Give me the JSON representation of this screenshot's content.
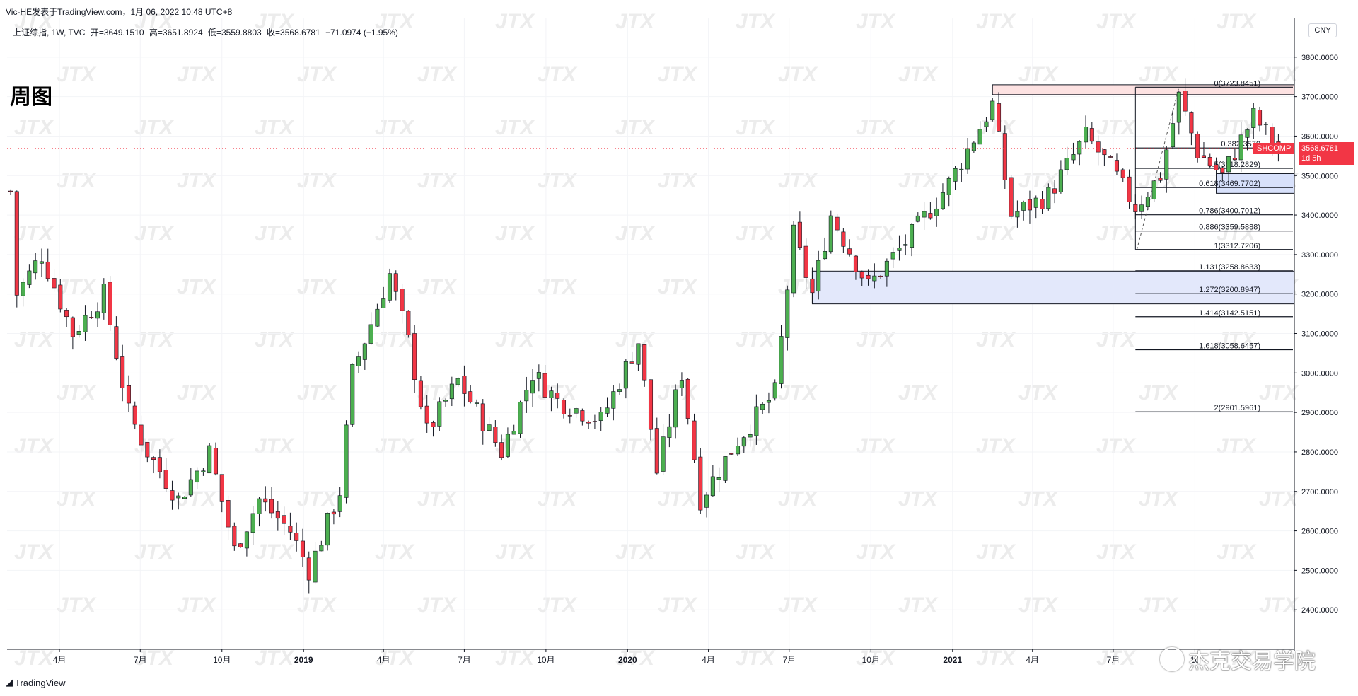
{
  "header": {
    "published": "Vic-HE发表于TradingView.com，1月 06, 2022 10:48 UTC+8"
  },
  "legend": {
    "symbol": "上证综指, 1W, TVC",
    "open": "开=3649.1510",
    "high": "高=3651.8924",
    "low": "低=3559.8803",
    "close": "收=3568.6781",
    "change": "−71.0974 (−1.95%)"
  },
  "page_title": "周图",
  "currency": "CNY",
  "price_tag": {
    "symbol": "SHCOMP",
    "price": "3568.6781",
    "countdown": "1d 5h"
  },
  "footer": {
    "brand": "TradingView"
  },
  "watermark": {
    "text": "杰克交易学院",
    "tile": "JTX"
  },
  "colors": {
    "up": "#4caf50",
    "down": "#f23645",
    "grid": "#f0f3fa",
    "axis": "#131722"
  },
  "chart_data": {
    "type": "candlestick",
    "y_axis": {
      "ylim": [
        2300,
        3900
      ],
      "ticks": [
        3800,
        3700,
        3600,
        3500,
        3400,
        3300,
        3200,
        3100,
        3000,
        2900,
        2800,
        2700,
        2600,
        2500,
        2400
      ],
      "tick_labels": [
        "3800.0000",
        "3700.0000",
        "3600.0000",
        "3500.0000",
        "3400.0000",
        "3300.0000",
        "3200.0000",
        "3100.0000",
        "3000.0000",
        "2900.0000",
        "2800.0000",
        "2700.0000",
        "2600.0000",
        "2500.0000",
        "2400.0000"
      ],
      "position": "right"
    },
    "x_axis": {
      "xlim": [
        "2018-02-01",
        "2022-01-21"
      ],
      "ticks": [
        {
          "date": "2018-04-01",
          "label": "4月"
        },
        {
          "date": "2018-07-01",
          "label": "7月"
        },
        {
          "date": "2018-10-01",
          "label": "10月"
        },
        {
          "date": "2019-01-01",
          "label": "2019"
        },
        {
          "date": "2019-04-01",
          "label": "4月"
        },
        {
          "date": "2019-07-01",
          "label": "7月"
        },
        {
          "date": "2019-10-01",
          "label": "10月"
        },
        {
          "date": "2020-01-01",
          "label": "2020"
        },
        {
          "date": "2020-04-01",
          "label": "4月"
        },
        {
          "date": "2020-07-01",
          "label": "7月"
        },
        {
          "date": "2020-10-01",
          "label": "10月"
        },
        {
          "date": "2021-01-01",
          "label": "2021"
        },
        {
          "date": "2021-04-01",
          "label": "4月"
        },
        {
          "date": "2021-07-01",
          "label": "7月"
        },
        {
          "date": "2021-10-01",
          "label": "10"
        }
      ]
    },
    "anchors": [
      {
        "date": "2018-02-05",
        "close": 3460
      },
      {
        "date": "2018-02-12",
        "close": 3200
      },
      {
        "date": "2018-03-12",
        "close": 3300
      },
      {
        "date": "2018-04-16",
        "close": 3100
      },
      {
        "date": "2018-05-21",
        "close": 3200
      },
      {
        "date": "2018-06-18",
        "close": 2900
      },
      {
        "date": "2018-07-09",
        "close": 2800
      },
      {
        "date": "2018-08-13",
        "close": 2680
      },
      {
        "date": "2018-09-17",
        "close": 2800
      },
      {
        "date": "2018-10-15",
        "close": 2550
      },
      {
        "date": "2018-11-12",
        "close": 2680
      },
      {
        "date": "2018-12-17",
        "close": 2600
      },
      {
        "date": "2019-01-07",
        "close": 2500
      },
      {
        "date": "2019-02-11",
        "close": 2700
      },
      {
        "date": "2019-02-25",
        "close": 3000
      },
      {
        "date": "2019-04-08",
        "close": 3250
      },
      {
        "date": "2019-04-29",
        "close": 3080
      },
      {
        "date": "2019-05-20",
        "close": 2850
      },
      {
        "date": "2019-06-24",
        "close": 2980
      },
      {
        "date": "2019-08-12",
        "close": 2800
      },
      {
        "date": "2019-09-16",
        "close": 3000
      },
      {
        "date": "2019-10-14",
        "close": 2930
      },
      {
        "date": "2019-12-02",
        "close": 2880
      },
      {
        "date": "2020-01-13",
        "close": 3080
      },
      {
        "date": "2020-02-03",
        "close": 2750
      },
      {
        "date": "2020-03-02",
        "close": 3000
      },
      {
        "date": "2020-03-23",
        "close": 2680
      },
      {
        "date": "2020-05-04",
        "close": 2830
      },
      {
        "date": "2020-06-15",
        "close": 2950
      },
      {
        "date": "2020-07-06",
        "close": 3350
      },
      {
        "date": "2020-07-27",
        "close": 3200
      },
      {
        "date": "2020-08-17",
        "close": 3400
      },
      {
        "date": "2020-09-28",
        "close": 3220
      },
      {
        "date": "2020-11-16",
        "close": 3350
      },
      {
        "date": "2020-12-28",
        "close": 3480
      },
      {
        "date": "2021-02-15",
        "close": 3680
      },
      {
        "date": "2021-03-08",
        "close": 3400
      },
      {
        "date": "2021-04-19",
        "close": 3450
      },
      {
        "date": "2021-05-31",
        "close": 3600
      },
      {
        "date": "2021-06-28",
        "close": 3520
      },
      {
        "date": "2021-07-26",
        "close": 3420
      },
      {
        "date": "2021-08-23",
        "close": 3500
      },
      {
        "date": "2021-09-13",
        "close": 3700
      },
      {
        "date": "2021-10-04",
        "close": 3560
      },
      {
        "date": "2021-11-01",
        "close": 3500
      },
      {
        "date": "2021-12-06",
        "close": 3650
      },
      {
        "date": "2022-01-03",
        "close": 3569
      }
    ],
    "zones": [
      {
        "from_date": "2021-02-15",
        "to_date": "2022-01-21",
        "y_from": 3705,
        "y_to": 3730,
        "fill": "#fde2e2",
        "border": "#131722"
      },
      {
        "from_date": "2020-07-27",
        "to_date": "2022-01-21",
        "y_from": 3175,
        "y_to": 3258,
        "fill": "#e3e8fb",
        "border": "#131722"
      },
      {
        "from_date": "2021-10-25",
        "to_date": "2022-01-21",
        "y_from": 3455,
        "y_to": 3505,
        "fill": "#d8e1fb",
        "border": "#131722"
      }
    ],
    "fib_levels": [
      {
        "ratio": "0",
        "value": 3723.8451,
        "label": "0(3723.8451)"
      },
      {
        "ratio": "0.382",
        "value": 3570,
        "label": "0.382(3570"
      },
      {
        "ratio": "0.5",
        "value": 3518.2829,
        "label": "0.5(3518.2829)"
      },
      {
        "ratio": "0.618",
        "value": 3469.7702,
        "label": "0.618(3469.7702)"
      },
      {
        "ratio": "0.786",
        "value": 3400.7012,
        "label": "0.786(3400.7012)"
      },
      {
        "ratio": "0.886",
        "value": 3359.5888,
        "label": "0.886(3359.5888)"
      },
      {
        "ratio": "1",
        "value": 3312.7206,
        "label": "1(3312.7206)"
      },
      {
        "ratio": "1.131",
        "value": 3258.8633,
        "label": "1.131(3258.8633)"
      },
      {
        "ratio": "1.272",
        "value": 3200.8947,
        "label": "1.272(3200.8947)"
      },
      {
        "ratio": "1.414",
        "value": 3142.5151,
        "label": "1.414(3142.5151)"
      },
      {
        "ratio": "1.618",
        "value": 3058.6457,
        "label": "1.618(3058.6457)"
      },
      {
        "ratio": "2",
        "value": 2901.5961,
        "label": "2(2901.5961)"
      }
    ],
    "fib_start_date": "2021-07-26",
    "last_price": 3568.6781
  }
}
